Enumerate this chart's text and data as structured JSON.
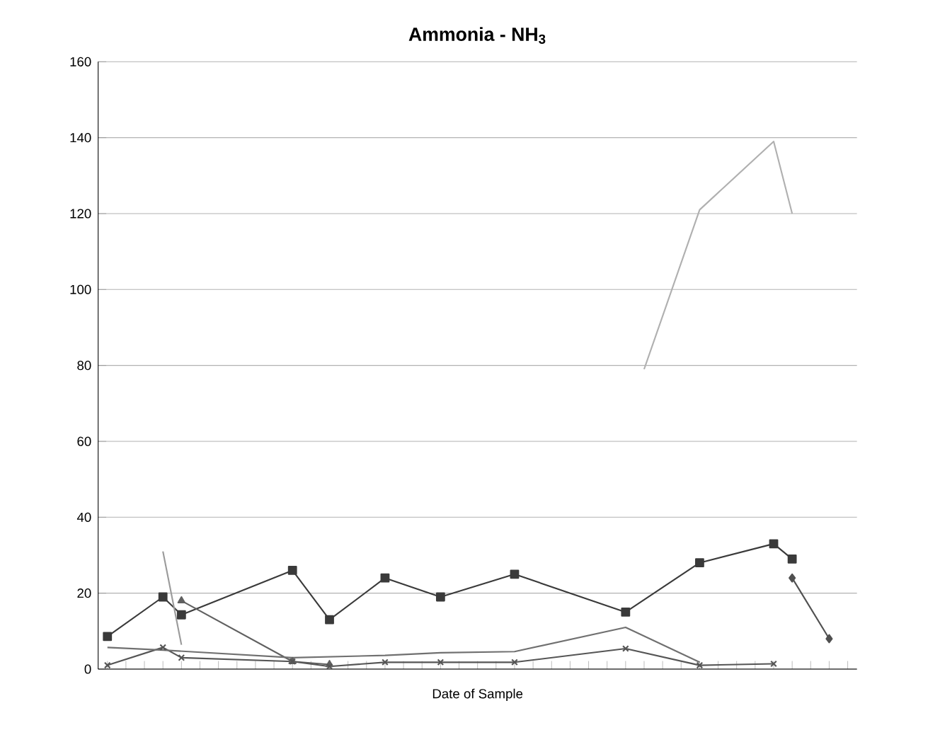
{
  "chart_data": {
    "type": "line",
    "title": "Ammonia - NH$_{3}$",
    "xlabel": "Date of Sample",
    "categories": [
      null,
      null,
      null,
      null,
      null,
      null,
      null,
      null,
      null,
      null,
      null,
      null,
      null,
      null,
      null,
      null,
      null,
      null,
      null,
      null,
      null,
      null,
      null,
      null,
      null,
      null,
      null,
      null,
      null,
      null,
      null,
      null,
      null,
      null,
      null,
      null,
      null,
      null,
      null,
      null,
      null
    ],
    "series": [
      {
        "color": "#3a3a3a",
        "marker": "square",
        "values": [
          8.6,
          null,
          null,
          19,
          14.3,
          null,
          null,
          null,
          null,
          null,
          26,
          null,
          13,
          null,
          null,
          24,
          null,
          null,
          19,
          null,
          null,
          null,
          25,
          null,
          null,
          null,
          null,
          null,
          15,
          null,
          null,
          null,
          28,
          null,
          null,
          null,
          33,
          29,
          null,
          null,
          null
        ]
      },
      {
        "color": "#505050",
        "marker": "diamond",
        "values": [
          null,
          null,
          null,
          null,
          null,
          null,
          null,
          null,
          null,
          null,
          null,
          null,
          null,
          null,
          null,
          null,
          null,
          null,
          null,
          null,
          null,
          null,
          null,
          null,
          null,
          null,
          null,
          null,
          null,
          null,
          null,
          null,
          null,
          null,
          null,
          null,
          null,
          24,
          null,
          8,
          null
        ]
      },
      {
        "color": "#606060",
        "marker": "triangle",
        "values": [
          null,
          null,
          null,
          null,
          18,
          null,
          null,
          null,
          null,
          null,
          2,
          null,
          1.2,
          null,
          null,
          null,
          null,
          null,
          null,
          null,
          null,
          null,
          null,
          null,
          null,
          null,
          null,
          null,
          null,
          null,
          null,
          null,
          null,
          null,
          null,
          null,
          null,
          null,
          null,
          null,
          null
        ]
      },
      {
        "color": "#555555",
        "marker": "cross",
        "values": [
          1,
          null,
          null,
          5.7,
          3,
          null,
          null,
          null,
          null,
          null,
          2,
          null,
          0.7,
          null,
          null,
          1.8,
          null,
          null,
          1.8,
          null,
          null,
          null,
          1.8,
          null,
          null,
          null,
          null,
          null,
          5.4,
          null,
          null,
          null,
          1,
          null,
          null,
          null,
          1.4,
          null,
          null,
          null,
          null
        ]
      },
      {
        "color": "#707070",
        "marker": "none",
        "values": [
          5.7,
          null,
          null,
          5,
          null,
          null,
          null,
          null,
          null,
          null,
          3,
          null,
          null,
          null,
          null,
          3.6,
          null,
          null,
          4.3,
          null,
          null,
          null,
          4.6,
          null,
          null,
          null,
          null,
          null,
          11,
          null,
          null,
          null,
          1.8,
          null,
          null,
          null,
          null,
          null,
          null,
          null,
          null
        ]
      },
      {
        "color": "#9a9a9a",
        "marker": "none",
        "values": [
          null,
          null,
          null,
          31,
          6.4,
          null,
          null,
          null,
          null,
          null,
          null,
          null,
          null,
          null,
          null,
          null,
          null,
          null,
          null,
          null,
          null,
          null,
          null,
          null,
          null,
          null,
          null,
          null,
          null,
          null,
          null,
          null,
          null,
          null,
          null,
          null,
          null,
          null,
          null,
          null,
          null
        ]
      },
      {
        "color": "#b0b0b0",
        "marker": "none",
        "values": [
          null,
          null,
          null,
          null,
          null,
          null,
          null,
          null,
          null,
          null,
          null,
          null,
          null,
          null,
          null,
          null,
          null,
          null,
          null,
          null,
          null,
          null,
          null,
          null,
          null,
          null,
          null,
          null,
          null,
          79,
          null,
          null,
          121,
          null,
          null,
          null,
          139,
          120,
          null,
          null,
          null
        ]
      }
    ],
    "ylim": [
      0,
      160
    ],
    "yticks": [
      0,
      20,
      40,
      60,
      80,
      100,
      120,
      140,
      160
    ],
    "grid": "y",
    "tick_labels": "y"
  }
}
